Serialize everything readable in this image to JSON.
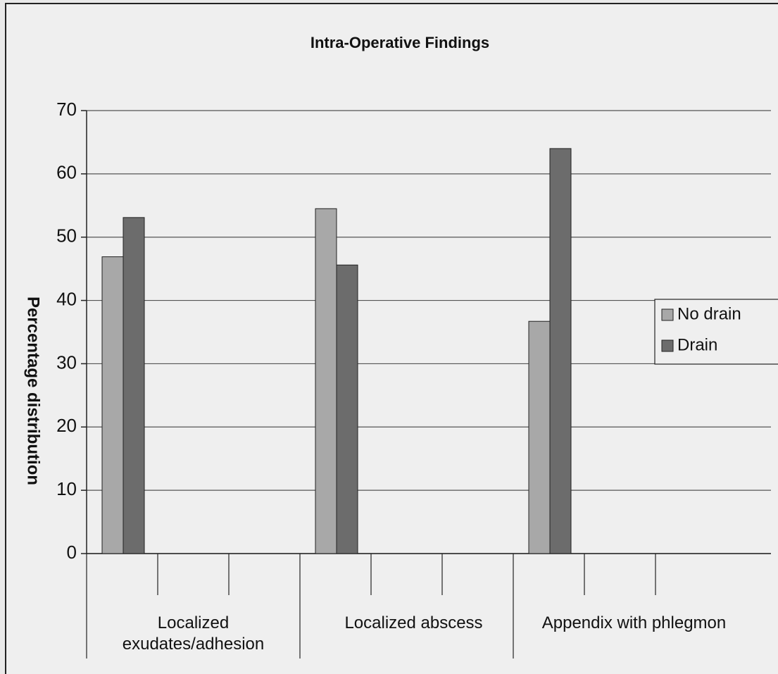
{
  "chart_data": {
    "type": "bar",
    "title": "Intra-Operative Findings",
    "y_label": "Percentage distribution",
    "categories": [
      "Localized exudates/adhesion",
      "Localized abscess",
      "Appendix with phlegmon"
    ],
    "series": [
      {
        "name": "No drain",
        "color": "#a8a8a8",
        "values": [
          46.9,
          54.5,
          36.7
        ]
      },
      {
        "name": "Drain",
        "color": "#6c6c6c",
        "values": [
          53.1,
          45.6,
          64.0
        ]
      }
    ],
    "ylim": [
      0,
      70
    ],
    "yticks": [
      0,
      10,
      20,
      30,
      40,
      50,
      60,
      70
    ],
    "grid": true,
    "legend": "right"
  }
}
